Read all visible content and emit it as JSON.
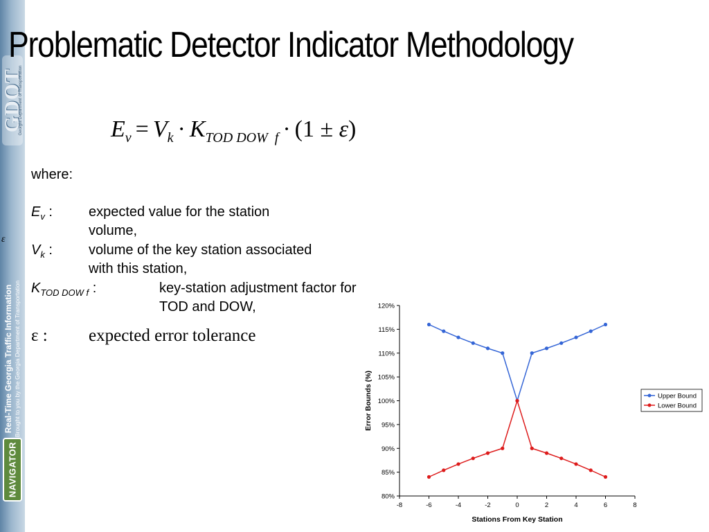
{
  "title": "Problematic Detector Indicator Methodology",
  "sidebar": {
    "logo_text": "GDOT",
    "logo_subtext": "Georgia Department of Transportation",
    "vertical_line1": "Real-Time Georgia Traffic Information",
    "vertical_line2": "Brought to you by the Georgia Department of Transportation",
    "navigator_logo": "NAVIGATOR",
    "epsilon": "ε"
  },
  "formula": {
    "E": "E",
    "v": "v",
    "eq": "=",
    "V": "V",
    "k": "k",
    "dot": "·",
    "K": "K",
    "tod_dow": "TOD DOW",
    "f": "f",
    "paren": "(1 ± ",
    "eps": "ε",
    "close": ")"
  },
  "body": {
    "where": "where:",
    "ev_symbol": "E",
    "ev_sub": "v",
    "ev_colon": " :",
    "ev_def_1": "expected value for the station",
    "ev_def_2": "volume,",
    "vk_symbol": "V",
    "vk_sub": "k",
    "vk_colon": " :",
    "vk_def_1": "volume of the key station associated",
    "vk_def_2": "with this station,",
    "k_symbol": "K",
    "k_sub": "TOD DOW f",
    "k_colon": " :",
    "k_def_1": "key-station adjustment factor for",
    "k_def_2": "TOD and DOW,",
    "eps_symbol": "ε :",
    "eps_def": "expected error tolerance"
  },
  "chart_data": {
    "type": "line",
    "xlabel": "Stations From Key Station",
    "ylabel": "Error Bounds (%)",
    "xlim": [
      -8,
      8
    ],
    "ylim": [
      80,
      120
    ],
    "x_ticks": [
      "-8",
      "-6",
      "-4",
      "-2",
      "0",
      "2",
      "4",
      "6",
      "8"
    ],
    "y_ticks": [
      "80%",
      "85%",
      "90%",
      "95%",
      "100%",
      "105%",
      "110%",
      "115%",
      "120%"
    ],
    "legend_position": "right",
    "series": [
      {
        "name": "Upper Bound",
        "color": "#3465d6",
        "x": [
          -6,
          -5,
          -4,
          -3,
          -2,
          -1,
          0,
          1,
          2,
          3,
          4,
          5,
          6
        ],
        "y": [
          116,
          114.6,
          113.3,
          112.1,
          111,
          110,
          100,
          110,
          111,
          112.1,
          113.3,
          114.6,
          116
        ]
      },
      {
        "name": "Lower Bound",
        "color": "#dd1b1b",
        "x": [
          -6,
          -5,
          -4,
          -3,
          -2,
          -1,
          0,
          1,
          2,
          3,
          4,
          5,
          6
        ],
        "y": [
          84,
          85.4,
          86.7,
          87.9,
          89,
          90,
          100,
          90,
          89,
          87.9,
          86.7,
          85.4,
          84
        ]
      }
    ]
  }
}
